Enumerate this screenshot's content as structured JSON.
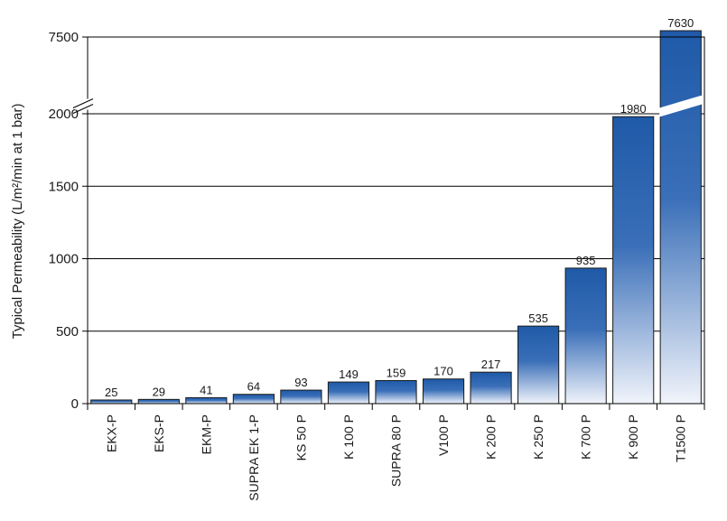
{
  "chart_data": {
    "type": "bar",
    "title": "",
    "xlabel": "",
    "ylabel": "Typical Permeability (L/m²/min at 1 bar)",
    "categories": [
      "EKX-P",
      "EKS-P",
      "EKM-P",
      "SUPRA EK 1-P",
      "KS 50 P",
      "K 100 P",
      "SUPRA 80 P",
      "V100 P",
      "K 200 P",
      "K 250 P",
      "K 700 P",
      "K 900 P",
      "T1500 P"
    ],
    "values": [
      25,
      29,
      41,
      64,
      93,
      149,
      159,
      170,
      217,
      535,
      935,
      1980,
      7630
    ],
    "data_labels": [
      "25",
      "29",
      "41",
      "64",
      "93",
      "149",
      "159",
      "170",
      "217",
      "535",
      "935",
      "1980",
      "7630"
    ],
    "ylim": [
      0,
      7630
    ],
    "y_ticks": [
      0,
      500,
      1000,
      1500,
      2000,
      7500
    ],
    "y_tick_labels": [
      "0",
      "500",
      "1000",
      "1500",
      "2000",
      "7500"
    ],
    "axis_break": [
      2000,
      7500
    ],
    "grid": true,
    "colors": {
      "bar_top": "#1f5aa8",
      "bar_bottom": "#eef2fa",
      "bar_edge": "#1a1a1a",
      "grid": "#000000"
    }
  }
}
